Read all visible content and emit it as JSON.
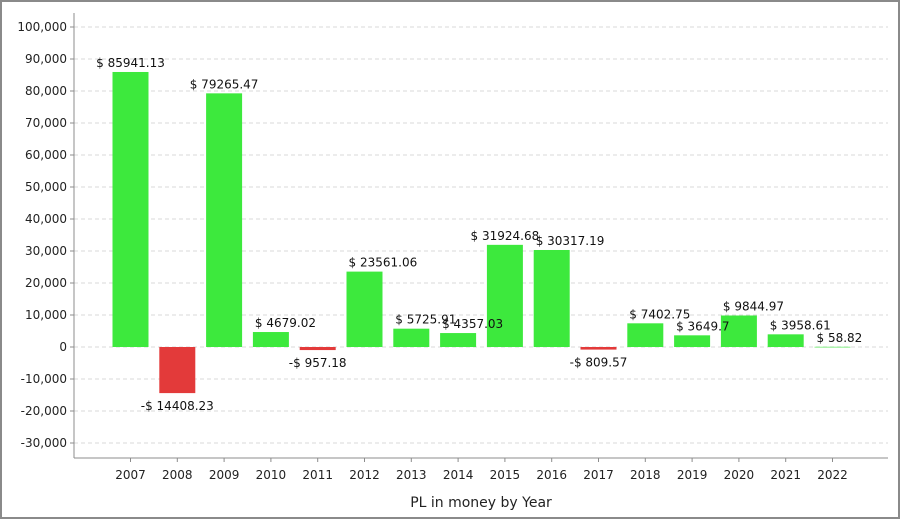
{
  "chart_data": {
    "type": "bar",
    "title": "",
    "xlabel": "PL in money by Year",
    "ylabel": "",
    "categories": [
      "2007",
      "2008",
      "2009",
      "2010",
      "2011",
      "2012",
      "2013",
      "2014",
      "2015",
      "2016",
      "2017",
      "2018",
      "2019",
      "2020",
      "2021",
      "2022"
    ],
    "values": [
      85941.13,
      -14408.23,
      79265.47,
      4679.02,
      -957.18,
      23561.06,
      5725.91,
      4357.03,
      31924.68,
      30317.19,
      -809.57,
      7402.75,
      3649.7,
      9844.97,
      3958.61,
      58.82
    ],
    "data_labels": [
      "$ 85941.13",
      "-$ 14408.23",
      "$ 79265.47",
      "$ 4679.02",
      "-$ 957.18",
      "$ 23561.06",
      "$ 5725.91",
      "$ 4357.03",
      "$ 31924.68",
      "$ 30317.19",
      "-$ 809.57",
      "$ 7402.75",
      "$ 3649.7",
      "$ 9844.97",
      "$ 3958.61",
      "$ 58.82"
    ],
    "ylim": [
      -35000,
      105000
    ],
    "yticks": [
      100000,
      90000,
      80000,
      70000,
      60000,
      50000,
      40000,
      30000,
      20000,
      10000,
      0,
      -10000,
      -20000,
      -30000
    ],
    "ytick_labels": [
      "100,000",
      "90,000",
      "80,000",
      "70,000",
      "60,000",
      "50,000",
      "40,000",
      "30,000",
      "20,000",
      "10,000",
      "0",
      "-10,000",
      "-20,000",
      "-30,000"
    ],
    "grid": true,
    "legend": "none",
    "colors": {
      "positive": "#3de93d",
      "negative": "#e33a3a",
      "grid": "#d9d9d9",
      "axis": "#8c8c8c"
    }
  }
}
